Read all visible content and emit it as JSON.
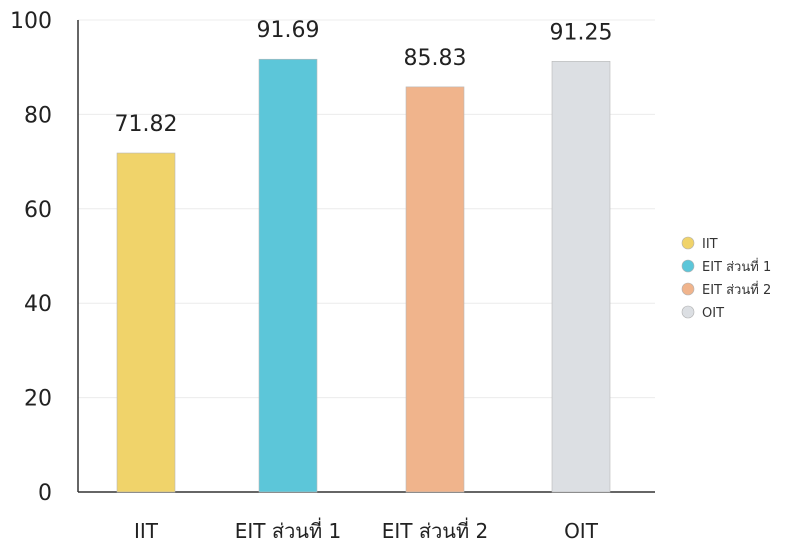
{
  "chart_data": {
    "type": "bar",
    "title": "",
    "xlabel": "",
    "ylabel": "",
    "categories": [
      "IIT",
      "EIT ส่วนที่ 1",
      "EIT ส่วนที่ 2",
      "OIT"
    ],
    "values": [
      71.82,
      91.69,
      85.83,
      91.25
    ],
    "value_labels": [
      "71.82",
      "91.69",
      "85.83",
      "91.25"
    ],
    "ylim": [
      0,
      100
    ],
    "yticks": [
      0,
      20,
      40,
      60,
      80,
      100
    ],
    "ytick_labels": [
      "0",
      "20",
      "40",
      "60",
      "80",
      "100"
    ],
    "colors": [
      "#f0d36a",
      "#5cc6d9",
      "#f0b48c",
      "#dcdfe3"
    ],
    "legend": {
      "placement": "right",
      "entries": [
        "IIT",
        "EIT ส่วนที่ 1",
        "EIT ส่วนที่ 2",
        "OIT"
      ]
    },
    "grid": true
  }
}
